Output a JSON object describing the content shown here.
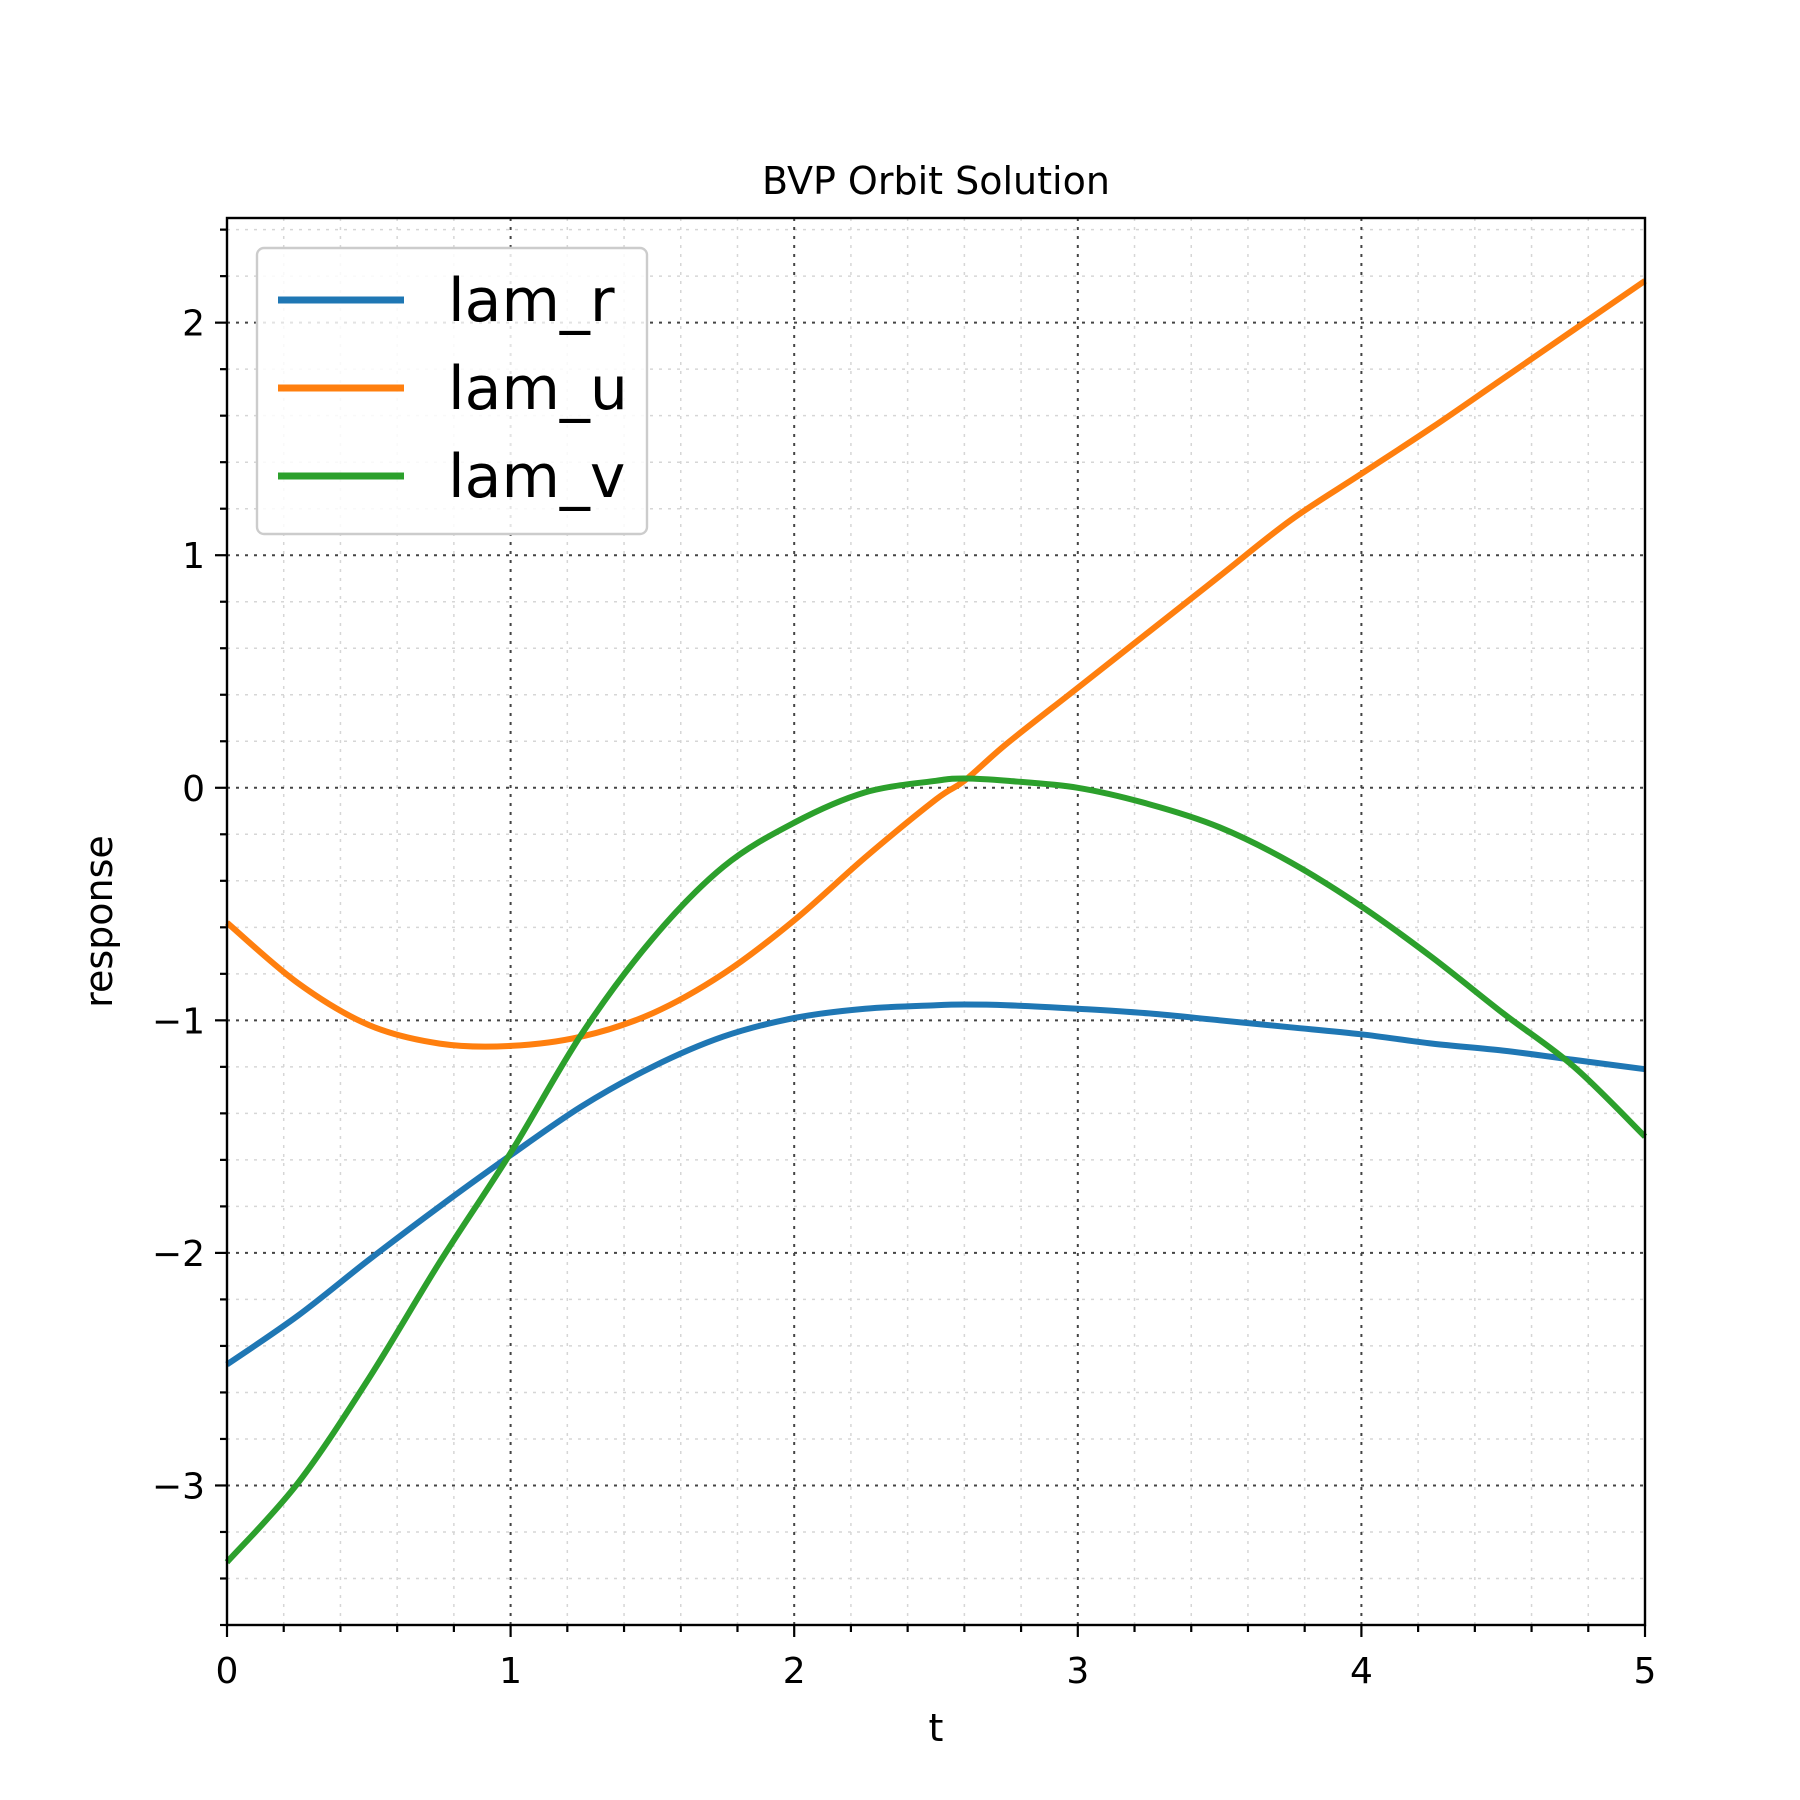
{
  "chart_data": {
    "type": "line",
    "title": "BVP Orbit Solution",
    "xlabel": "t",
    "ylabel": "response",
    "xlim": [
      0,
      5
    ],
    "ylim": [
      -3.6,
      2.45
    ],
    "x_ticks": [
      0,
      1,
      2,
      3,
      4,
      5
    ],
    "x_tick_labels": [
      "0",
      "1",
      "2",
      "3",
      "4",
      "5"
    ],
    "y_ticks": [
      -3,
      -2,
      -1,
      0,
      1,
      2
    ],
    "y_tick_labels": [
      "−3",
      "−2",
      "−1",
      "0",
      "1",
      "2"
    ],
    "x_minor_step": 0.2,
    "y_minor_step": 0.2,
    "grid": "major and minor, dotted",
    "legend_position": "upper-left",
    "x": [
      0,
      0.25,
      0.5,
      0.75,
      1,
      1.25,
      1.5,
      1.75,
      2,
      2.25,
      2.5,
      2.6,
      2.75,
      3,
      3.25,
      3.5,
      3.75,
      4,
      4.25,
      4.5,
      4.75,
      5
    ],
    "series": [
      {
        "name": "lam_r",
        "color": "#1f77b4",
        "values": [
          -2.48,
          -2.27,
          -2.03,
          -1.8,
          -1.58,
          -1.37,
          -1.2,
          -1.07,
          -0.99,
          -0.95,
          -0.935,
          -0.932,
          -0.935,
          -0.95,
          -0.97,
          -1.0,
          -1.03,
          -1.06,
          -1.1,
          -1.13,
          -1.17,
          -1.21
        ]
      },
      {
        "name": "lam_u",
        "color": "#ff7f0e",
        "values": [
          -0.58,
          -0.84,
          -1.02,
          -1.1,
          -1.11,
          -1.07,
          -0.97,
          -0.8,
          -0.57,
          -0.3,
          -0.05,
          0.03,
          0.19,
          0.43,
          0.67,
          0.91,
          1.15,
          1.35,
          1.55,
          1.76,
          1.97,
          2.18
        ]
      },
      {
        "name": "lam_v",
        "color": "#2ca02c",
        "values": [
          -3.33,
          -2.99,
          -2.54,
          -2.04,
          -1.57,
          -1.06,
          -0.65,
          -0.34,
          -0.15,
          -0.02,
          0.03,
          0.04,
          0.03,
          0.0,
          -0.07,
          -0.17,
          -0.32,
          -0.51,
          -0.73,
          -0.97,
          -1.2,
          -1.5
        ]
      }
    ]
  }
}
